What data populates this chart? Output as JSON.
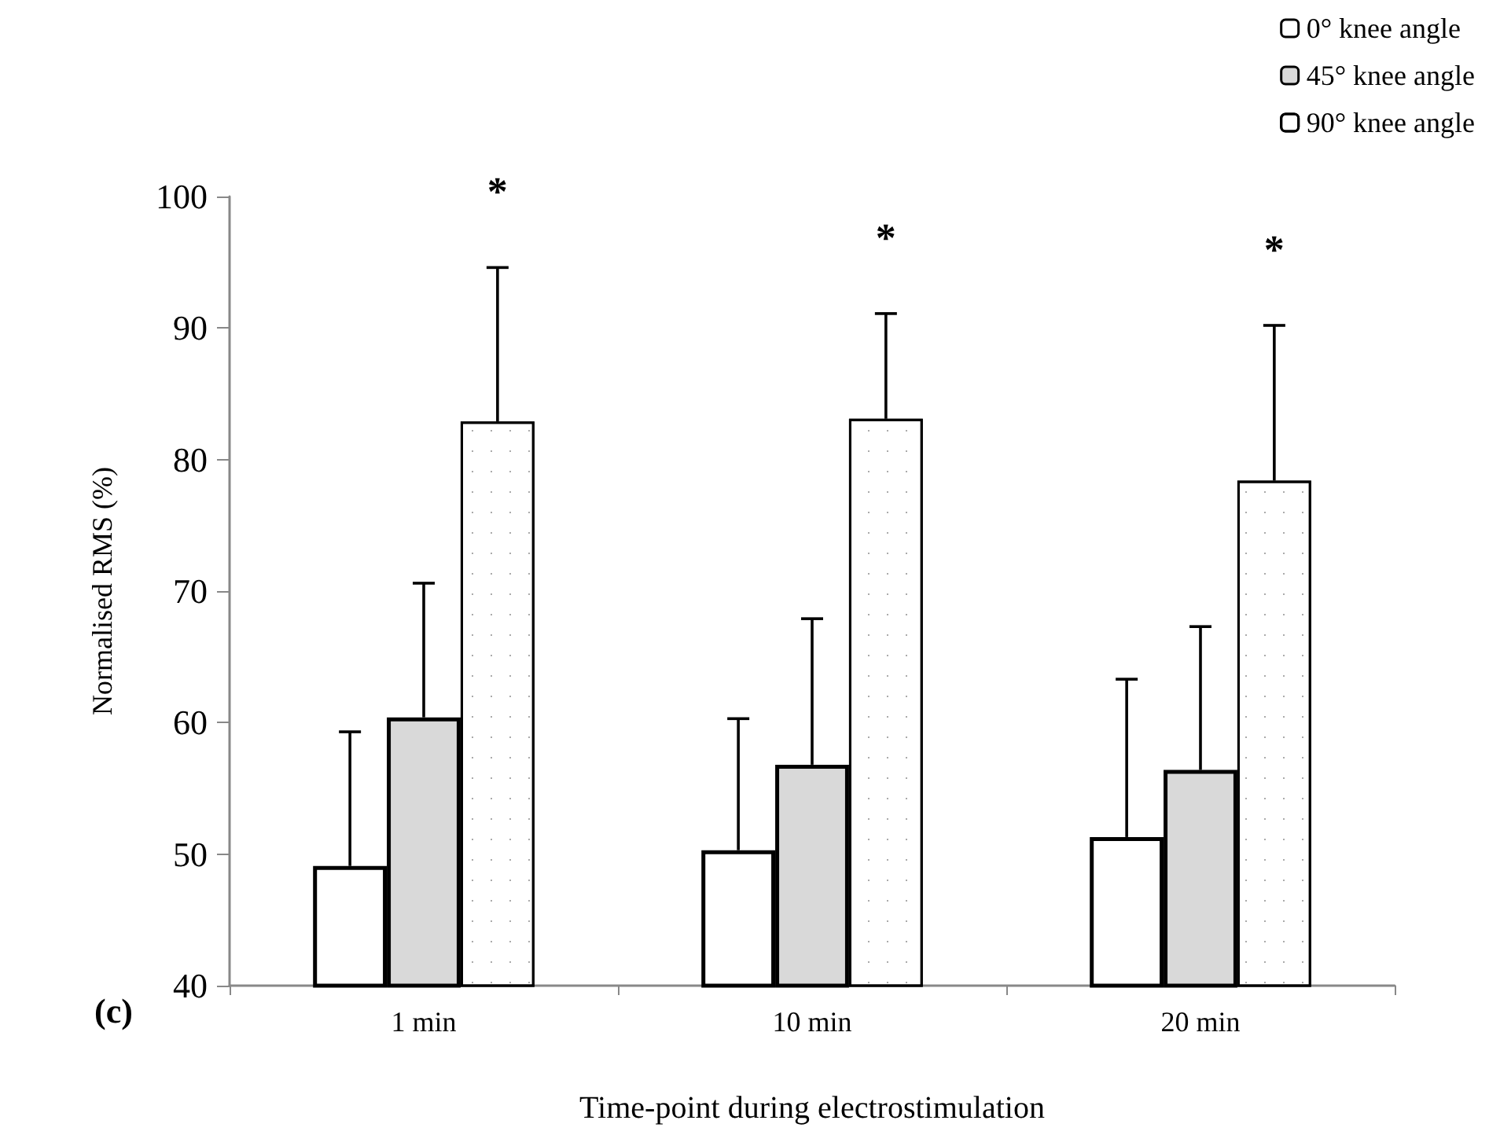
{
  "chart_data": {
    "type": "bar",
    "xlabel": "Time-point during electrostimulation",
    "ylabel": "Normalised RMS (%)",
    "categories": [
      "1 min",
      "10 min",
      "20 min"
    ],
    "series": [
      {
        "name": "0° knee angle",
        "color": "#ffffff",
        "values": [
          49.1,
          50.3,
          51.3
        ],
        "errors": [
          [
            49.1,
            59.3
          ],
          [
            50.3,
            60.3
          ],
          [
            51.3,
            63.3
          ]
        ]
      },
      {
        "name": "45° knee angle",
        "color": "#d9d9d9",
        "values": [
          60.4,
          56.8,
          56.4
        ],
        "errors": [
          [
            60.4,
            70.6
          ],
          [
            56.8,
            67.9
          ],
          [
            56.4,
            67.3
          ]
        ]
      },
      {
        "name": "90° knee angle",
        "color": "#ffffff",
        "values": [
          82.9,
          83.1,
          78.4
        ],
        "errors": [
          [
            82.9,
            94.6
          ],
          [
            83.1,
            91.1
          ],
          [
            78.4,
            90.2
          ]
        ]
      }
    ],
    "ylim": [
      40,
      100
    ],
    "yticks": [
      40,
      50,
      60,
      70,
      80,
      90,
      100
    ],
    "grid": false,
    "legend": "top right",
    "annotations": [
      "*",
      "*",
      "*",
      "(c)"
    ]
  }
}
